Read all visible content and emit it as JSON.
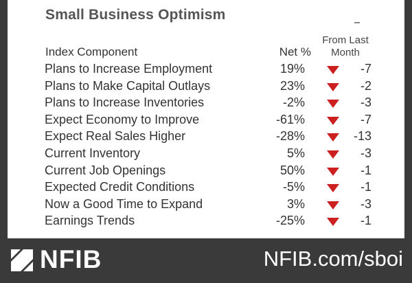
{
  "title": "Small Business Optimism",
  "header": {
    "component": "Index Component",
    "net": "Net %",
    "change": "From Last Month"
  },
  "rows": [
    {
      "label": "Plans to Increase Employment",
      "net": "19%",
      "change": "-7"
    },
    {
      "label": "Plans to Make Capital Outlays",
      "net": "23%",
      "change": "-2"
    },
    {
      "label": "Plans to Increase Inventories",
      "net": "-2%",
      "change": "-3"
    },
    {
      "label": "Expect Economy to Improve",
      "net": "-61%",
      "change": "-7"
    },
    {
      "label": "Expect Real Sales Higher",
      "net": "-28%",
      "change": "-13"
    },
    {
      "label": "Current Inventory",
      "net": "5%",
      "change": "-3"
    },
    {
      "label": "Current Job Openings",
      "net": "50%",
      "change": "-1"
    },
    {
      "label": "Expected Credit Conditions",
      "net": "-5%",
      "change": "-1"
    },
    {
      "label": "Now a Good Time to Expand",
      "net": "3%",
      "change": "-3"
    },
    {
      "label": "Earnings Trends",
      "net": "-25%",
      "change": "-1"
    }
  ],
  "arrow_icon": "down-triangle-icon",
  "arrow_color": "#cc1f1f",
  "footer": {
    "logo_text": "NFIB",
    "url": "NFIB.com/sboi"
  }
}
